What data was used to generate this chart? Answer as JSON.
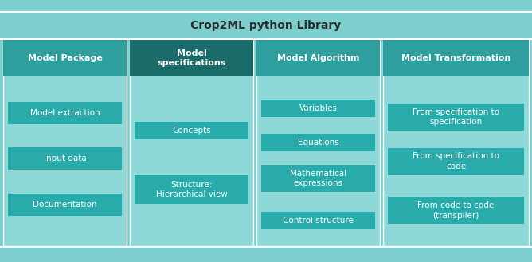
{
  "title": "Crop2ML python Library",
  "title_fontsize": 10,
  "bg_outer": "#7DCFCF",
  "bg_column": "#8ED8D8",
  "header_col1": "#2A9B9B",
  "header_col2": "#1E6E6E",
  "header_col3": "#2A9B9B",
  "header_col4": "#2A9B9B",
  "item_box": "#29ABAB",
  "text_dark": "#2B2B2B",
  "text_white": "#FFFFFF",
  "columns": [
    {
      "header": "Model Package",
      "header_bg": "#2E9E9E",
      "header_multiline": false,
      "items": [
        {
          "text": "Model extraction"
        },
        {
          "text": "Input data"
        },
        {
          "text": "Documentation"
        }
      ]
    },
    {
      "header": "Model\nspecifications",
      "header_bg": "#1C6B6B",
      "header_multiline": true,
      "items": [
        {
          "text": "Concepts"
        },
        {
          "text": "Structure:\nHierarchical view"
        }
      ]
    },
    {
      "header": "Model Algorithm",
      "header_bg": "#2E9E9E",
      "header_multiline": false,
      "items": [
        {
          "text": "Variables"
        },
        {
          "text": "Equations"
        },
        {
          "text": "Mathematical\nexpressions"
        },
        {
          "text": "Control structure"
        }
      ]
    },
    {
      "header": "Model Transformation",
      "header_bg": "#2E9E9E",
      "header_multiline": false,
      "items": [
        {
          "text": "From specification to\nspecification"
        },
        {
          "text": "From specification to\ncode"
        },
        {
          "text": "From code to code\n(transpiler)"
        }
      ]
    }
  ]
}
